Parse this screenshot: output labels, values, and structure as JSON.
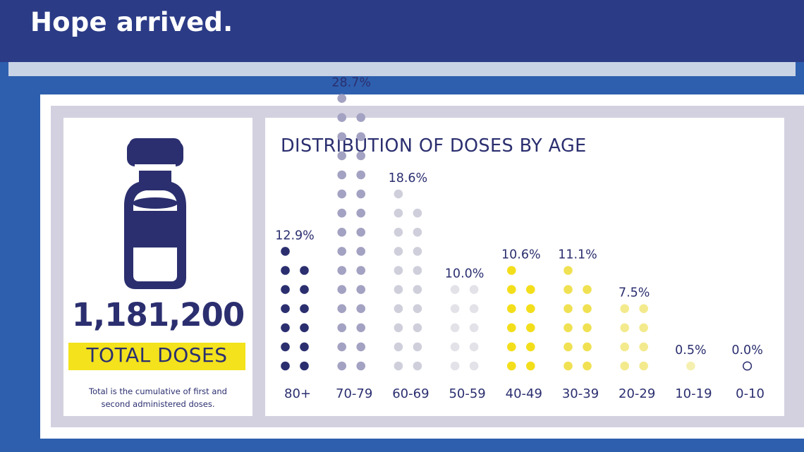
{
  "header": {
    "title": "Hope arrived."
  },
  "summary": {
    "total_number": "1,181,200",
    "total_label": "TOTAL DOSES",
    "footnote_line1": "Total is the cumulative of first and",
    "footnote_line2": "second administered doses."
  },
  "colors": {
    "banner": "#2b3b86",
    "background_blue": "#2e5fae",
    "text_navy": "#2b2f6f",
    "badge_yellow": "#f3e21c"
  },
  "chart_data": {
    "type": "dot-column",
    "title": "DISTRIBUTION OF DOSES BY AGE",
    "categories": [
      "80+",
      "70-79",
      "60-69",
      "50-59",
      "40-49",
      "30-39",
      "20-29",
      "10-19",
      "0-10"
    ],
    "values": [
      12.9,
      28.7,
      18.6,
      10.0,
      10.6,
      11.1,
      7.5,
      0.5,
      0.0
    ],
    "value_labels": [
      "12.9%",
      "28.7%",
      "18.6%",
      "10.0%",
      "10.6%",
      "11.1%",
      "7.5%",
      "0.5%",
      "0.0%"
    ],
    "dot_counts": [
      13,
      29,
      19,
      10,
      11,
      11,
      8,
      1,
      1
    ],
    "dot_colors": [
      "#2b2f6f",
      "#a3a2c2",
      "#cfcfdc",
      "#e2e2e8",
      "#f3de1b",
      "#f0e153",
      "#f3ea8e",
      "#f5f0b0",
      "#ffffff"
    ],
    "unit": "%"
  }
}
